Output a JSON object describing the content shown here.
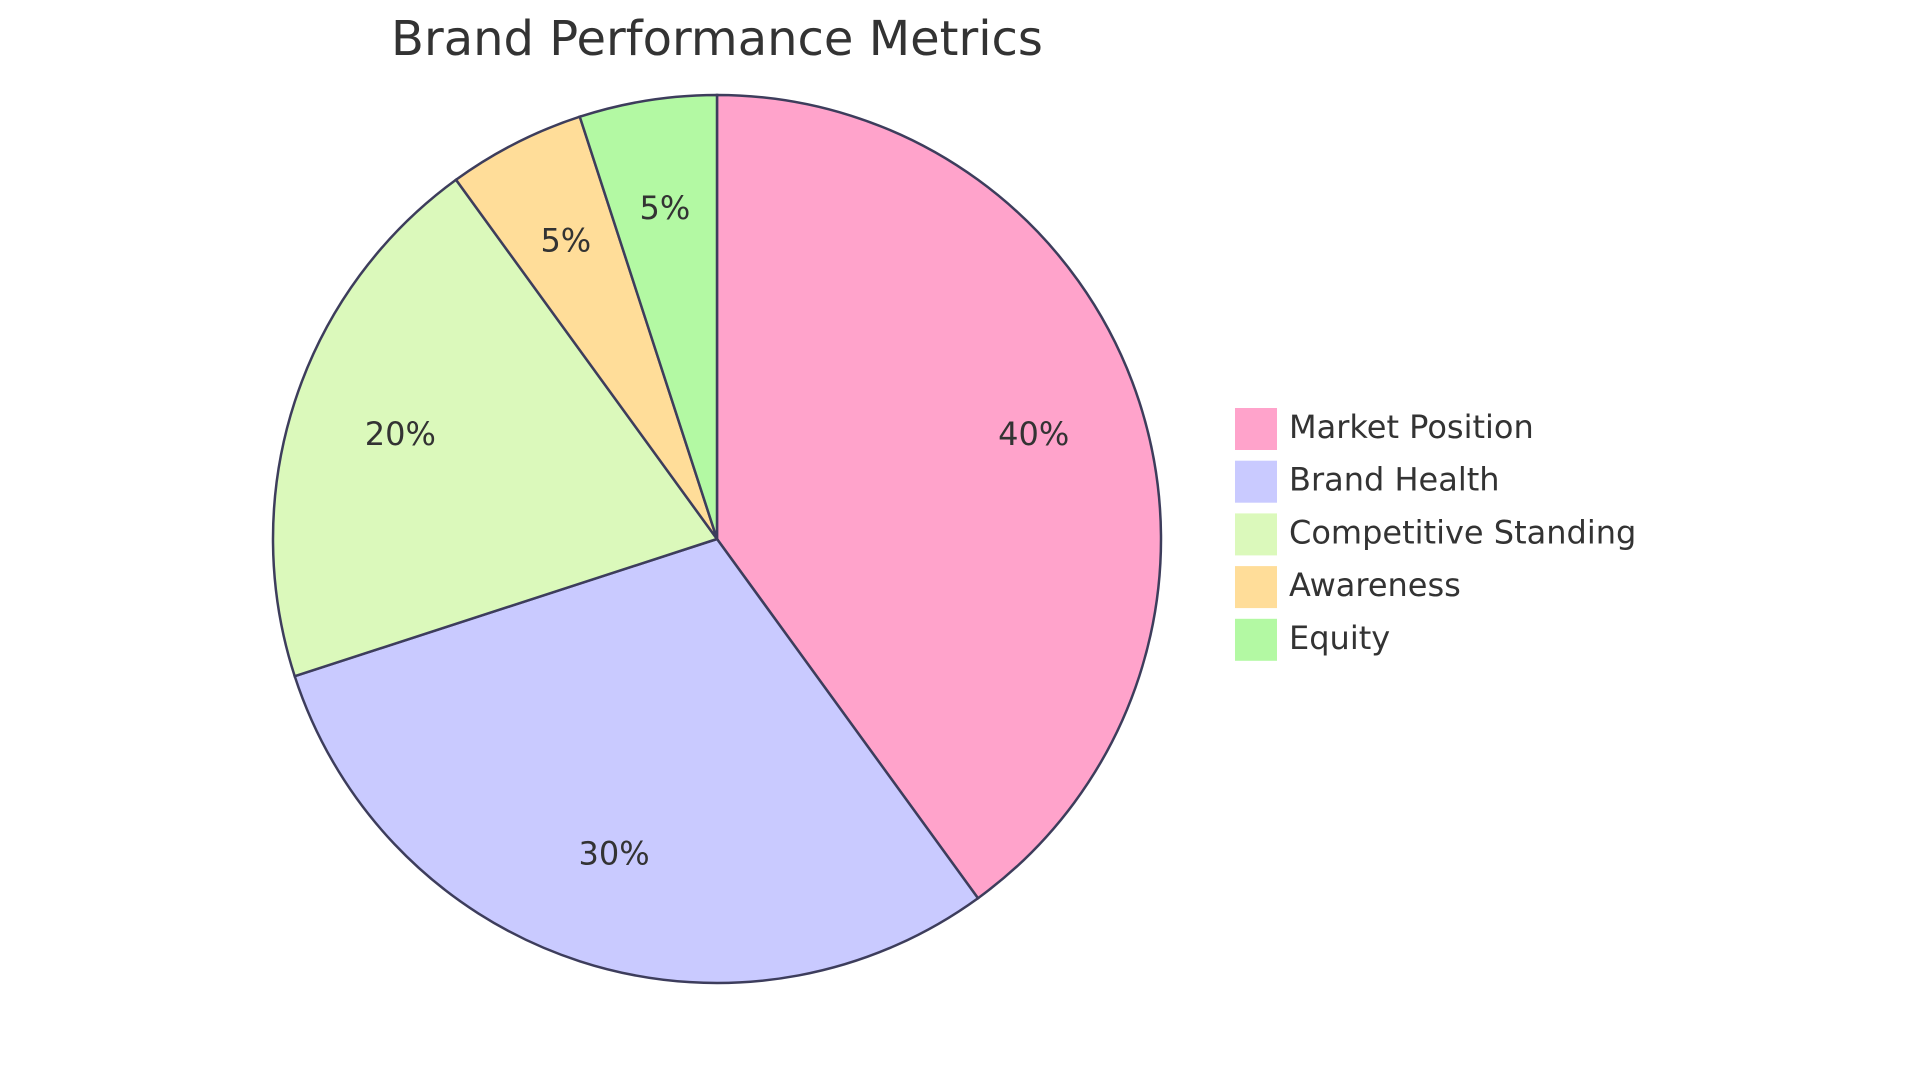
{
  "chart_data": {
    "type": "pie",
    "title": "Brand Performance Metrics",
    "categories": [
      "Market Position",
      "Brand Health",
      "Competitive Standing",
      "Awareness",
      "Equity"
    ],
    "values": [
      40,
      30,
      20,
      5,
      5
    ],
    "value_labels": [
      "40%",
      "30%",
      "20%",
      "5%",
      "5%"
    ],
    "colors": [
      "#ffa3cb",
      "#c9caff",
      "#dbf9bb",
      "#ffdd99",
      "#b3f9a3"
    ]
  }
}
